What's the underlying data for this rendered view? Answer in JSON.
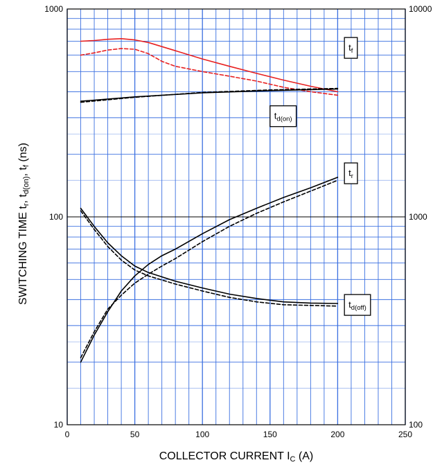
{
  "chart_data": {
    "type": "line",
    "title": "",
    "xlabel": "COLLECTOR CURRENT",
    "xlabel_symbol": "I",
    "xlabel_symbol_sub": "C",
    "xlabel_unit": "(A)",
    "ylabel": "SWITCHING TIME",
    "ylabel_symbols": [
      {
        "base": "t",
        "sub": "r",
        "sep": ","
      },
      {
        "base": "t",
        "sub": "d(on)",
        "sep": ","
      },
      {
        "base": "t",
        "sub": "f",
        "sep": ""
      }
    ],
    "ylabel_unit": "(ns)",
    "xlim": [
      0,
      250
    ],
    "ylim": [
      10,
      1000
    ],
    "y_scale": "log",
    "grid": true,
    "grid_color": "#3a6fe0",
    "x_ticks": [
      "0",
      "50",
      "100",
      "150",
      "200",
      "250"
    ],
    "x_tick_values": [
      0,
      50,
      100,
      150,
      200,
      250
    ],
    "y_ticks_left": [
      "10",
      "100",
      "1000"
    ],
    "y_tick_left_values": [
      10,
      100,
      1000
    ],
    "y_ticks_right": [
      "100",
      "1000",
      "10000"
    ],
    "y_right_lim": [
      100,
      10000
    ],
    "series": [
      {
        "label": "tf",
        "color": "#e82020",
        "dash": "solid",
        "axis": "left",
        "x": [
          10,
          20,
          30,
          40,
          50,
          60,
          80,
          100,
          120,
          140,
          160,
          180,
          200
        ],
        "y": [
          700,
          705,
          715,
          720,
          710,
          690,
          630,
          575,
          530,
          490,
          455,
          425,
          400
        ]
      },
      {
        "label": "tf",
        "color": "#e82020",
        "dash": "dashed",
        "axis": "left",
        "x": [
          10,
          20,
          30,
          40,
          50,
          60,
          70,
          80,
          100,
          120,
          140,
          160,
          180,
          200
        ],
        "y": [
          600,
          615,
          635,
          645,
          640,
          610,
          560,
          530,
          500,
          475,
          450,
          420,
          400,
          385
        ]
      },
      {
        "label": "td(on)",
        "color": "#000000",
        "dash": "solid",
        "axis": "left",
        "x": [
          10,
          50,
          100,
          150,
          200
        ],
        "y": [
          360,
          378,
          395,
          405,
          412
        ]
      },
      {
        "label": "td(on)",
        "color": "#000000",
        "dash": "dashed",
        "axis": "left",
        "x": [
          10,
          50,
          100,
          150,
          200
        ],
        "y": [
          356,
          376,
          397,
          408,
          415
        ]
      },
      {
        "label": "tr",
        "color": "#000000",
        "dash": "solid",
        "axis": "left",
        "x": [
          10,
          20,
          30,
          40,
          50,
          60,
          70,
          80,
          100,
          120,
          140,
          160,
          180,
          200
        ],
        "y": [
          20,
          27,
          35,
          44,
          52,
          59,
          65,
          70,
          83,
          97,
          110,
          124,
          138,
          155
        ]
      },
      {
        "label": "tr",
        "color": "#000000",
        "dash": "dashed",
        "axis": "left",
        "x": [
          10,
          20,
          30,
          40,
          50,
          60,
          70,
          80,
          100,
          120,
          140,
          160,
          180,
          200
        ],
        "y": [
          21,
          28,
          36,
          42,
          48,
          53,
          58,
          63,
          76,
          90,
          104,
          118,
          133,
          150
        ]
      },
      {
        "label": "td(off)",
        "color": "#000000",
        "dash": "solid",
        "axis": "right",
        "x": [
          10,
          20,
          30,
          40,
          50,
          60,
          80,
          100,
          120,
          140,
          160,
          180,
          200
        ],
        "y": [
          1100,
          900,
          750,
          650,
          580,
          540,
          490,
          455,
          425,
          405,
          390,
          385,
          383
        ]
      },
      {
        "label": "td(off)",
        "color": "#000000",
        "dash": "dashed",
        "axis": "right",
        "x": [
          10,
          20,
          30,
          40,
          50,
          60,
          80,
          100,
          120,
          140,
          160,
          180,
          200
        ],
        "y": [
          1070,
          870,
          720,
          620,
          555,
          520,
          475,
          440,
          410,
          390,
          378,
          375,
          372
        ]
      }
    ],
    "annotations": [
      {
        "base": "t",
        "sub": "f",
        "x": 205,
        "y": 650,
        "axis": "left"
      },
      {
        "base": "t",
        "sub": "d(on)",
        "x": 150,
        "y": 305,
        "axis": "left"
      },
      {
        "base": "t",
        "sub": "r",
        "x": 205,
        "y": 162,
        "axis": "left"
      },
      {
        "base": "t",
        "sub": "d(off)",
        "x": 205,
        "y": 377,
        "axis": "right"
      }
    ]
  }
}
